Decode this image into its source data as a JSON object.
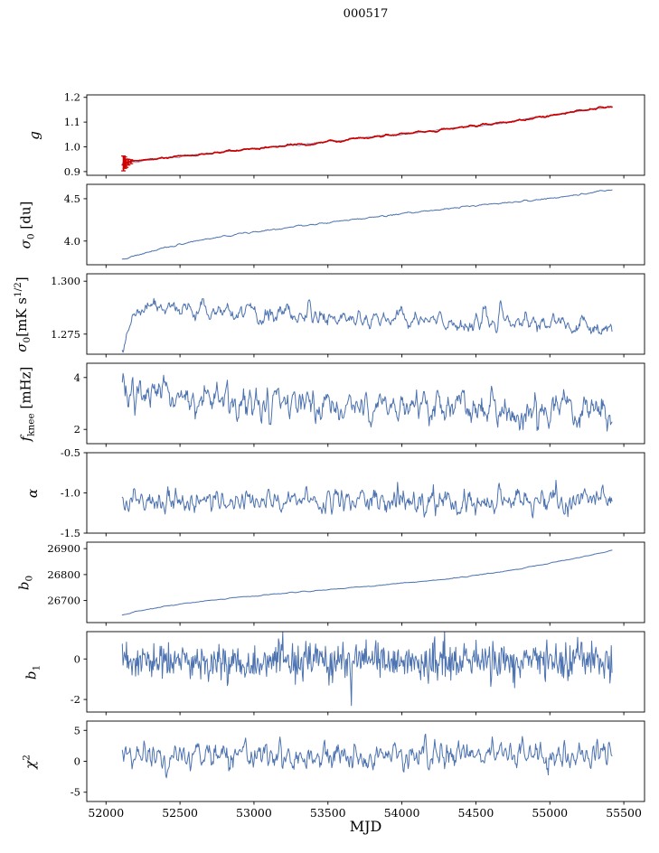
{
  "figure": {
    "title": "000517",
    "xlabel": "MJD",
    "bg_color": "#ffffff",
    "axis_color": "#000000",
    "line_color": "#4c72b0",
    "accent_color": "#cc0000"
  },
  "chart_data": {
    "type": "line",
    "title": "000517",
    "xlabel": "MJD",
    "x_range": [
      51870,
      55640
    ],
    "x_ticks": [
      52000,
      52500,
      53000,
      53500,
      54000,
      54500,
      55000,
      55500
    ],
    "x_tick_labels": [
      "52000",
      "52500",
      "53000",
      "53500",
      "54000",
      "54500",
      "55000",
      "55500"
    ],
    "x_data_range": [
      52110,
      55420
    ],
    "legend": "none",
    "grid": false,
    "subplots": [
      {
        "name": "g",
        "ylabel_text": "g",
        "ylabel_segments": [
          {
            "t": "g",
            "i": true
          }
        ],
        "ylim": [
          0.885,
          1.21
        ],
        "yticks": [
          0.9,
          1.0,
          1.1,
          1.2
        ],
        "ytick_labels": [
          "0.9",
          "1.0",
          "1.1",
          "1.2"
        ],
        "series": [
          {
            "name": "gain-model",
            "color": "#93a2c4",
            "lw": 1.0,
            "n": 600,
            "seed": 3,
            "x_start": 52110,
            "x_end": 55420,
            "noise_sd": 0.002,
            "smooth": 3,
            "trend": [
              [
                52110,
                0.933
              ],
              [
                52250,
                0.945
              ],
              [
                52400,
                0.956
              ],
              [
                52600,
                0.968
              ],
              [
                52800,
                0.98
              ],
              [
                53000,
                0.994
              ],
              [
                53200,
                1.004
              ],
              [
                53400,
                1.014
              ],
              [
                53600,
                1.028
              ],
              [
                53800,
                1.04
              ],
              [
                54000,
                1.052
              ],
              [
                54200,
                1.065
              ],
              [
                54400,
                1.078
              ],
              [
                54600,
                1.091
              ],
              [
                54800,
                1.107
              ],
              [
                55000,
                1.126
              ],
              [
                55150,
                1.141
              ],
              [
                55300,
                1.154
              ],
              [
                55420,
                1.162
              ]
            ]
          },
          {
            "name": "gain",
            "color": "#cc0000",
            "lw": 1.7,
            "n": 600,
            "seed": 5,
            "x_start": 52110,
            "x_end": 55420,
            "noise_sd": 0.0022,
            "smooth": 3,
            "trend": [
              [
                52110,
                0.933
              ],
              [
                52250,
                0.945
              ],
              [
                52400,
                0.956
              ],
              [
                52600,
                0.968
              ],
              [
                52800,
                0.98
              ],
              [
                53000,
                0.994
              ],
              [
                53200,
                1.004
              ],
              [
                53400,
                1.014
              ],
              [
                53600,
                1.028
              ],
              [
                53800,
                1.04
              ],
              [
                54000,
                1.052
              ],
              [
                54200,
                1.065
              ],
              [
                54400,
                1.078
              ],
              [
                54600,
                1.091
              ],
              [
                54800,
                1.107
              ],
              [
                55000,
                1.126
              ],
              [
                55150,
                1.141
              ],
              [
                55300,
                1.154
              ],
              [
                55420,
                1.162
              ]
            ]
          }
        ],
        "errorbars": {
          "color": "#cc0000",
          "points": [
            [
              52118,
              0.933,
              0.03
            ],
            [
              52127,
              0.936,
              0.023
            ],
            [
              52137,
              0.934,
              0.017
            ],
            [
              52150,
              0.938,
              0.012
            ],
            [
              52168,
              0.94,
              0.008
            ]
          ]
        }
      },
      {
        "name": "sigma0-du",
        "ylabel_text": "sigma0 [du]",
        "ylabel_segments": [
          {
            "t": "σ",
            "i": true
          },
          {
            "t": "0",
            "sub": true
          },
          {
            "t": " [du]"
          }
        ],
        "ylim": [
          3.72,
          4.67
        ],
        "yticks": [
          4.0,
          4.5
        ],
        "ytick_labels": [
          "4.0",
          "4.5"
        ],
        "series": [
          {
            "name": "sigma0-du",
            "color": "#4c72b0",
            "lw": 1.0,
            "n": 600,
            "seed": 7,
            "x_start": 52110,
            "x_end": 55420,
            "noise_sd": 0.005,
            "smooth": 2,
            "trend": [
              [
                52110,
                3.78
              ],
              [
                52250,
                3.85
              ],
              [
                52400,
                3.92
              ],
              [
                52600,
                4.0
              ],
              [
                52800,
                4.06
              ],
              [
                53000,
                4.11
              ],
              [
                53200,
                4.155
              ],
              [
                53400,
                4.2
              ],
              [
                53600,
                4.24
              ],
              [
                53800,
                4.28
              ],
              [
                54000,
                4.32
              ],
              [
                54200,
                4.36
              ],
              [
                54400,
                4.4
              ],
              [
                54600,
                4.44
              ],
              [
                54800,
                4.47
              ],
              [
                55000,
                4.5
              ],
              [
                55200,
                4.55
              ],
              [
                55420,
                4.61
              ]
            ]
          }
        ]
      },
      {
        "name": "sigma0-mks",
        "ylabel_text": "sigma0 [mK s^1/2]",
        "ylabel_segments": [
          {
            "t": "σ",
            "i": true
          },
          {
            "t": "0",
            "sub": true
          },
          {
            "t": "[mK s"
          },
          {
            "t": "1/2",
            "sup": true
          },
          {
            "t": "]"
          }
        ],
        "ylim": [
          1.2655,
          1.3035
        ],
        "yticks": [
          1.275,
          1.3
        ],
        "ytick_labels": [
          "1.275",
          "1.300"
        ],
        "series": [
          {
            "name": "sigma0-mks",
            "color": "#4c72b0",
            "lw": 1.0,
            "n": 700,
            "seed": 11,
            "x_start": 52110,
            "x_end": 55420,
            "noise_sd": 0.0022,
            "smooth": 2,
            "trend": [
              [
                52110,
                1.2715
              ],
              [
                52180,
                1.282
              ],
              [
                52260,
                1.288
              ],
              [
                52360,
                1.2895
              ],
              [
                52460,
                1.286
              ],
              [
                52620,
                1.287
              ],
              [
                52820,
                1.284
              ],
              [
                53020,
                1.283
              ],
              [
                53220,
                1.2845
              ],
              [
                53520,
                1.283
              ],
              [
                53820,
                1.282
              ],
              [
                54120,
                1.2812
              ],
              [
                54420,
                1.28
              ],
              [
                54720,
                1.2812
              ],
              [
                55020,
                1.28
              ],
              [
                55220,
                1.2782
              ],
              [
                55360,
                1.2756
              ],
              [
                55420,
                1.2745
              ]
            ]
          }
        ]
      },
      {
        "name": "fknee",
        "ylabel_text": "f_knee [mHz]",
        "ylabel_segments": [
          {
            "t": "f",
            "i": true
          },
          {
            "t": "knee",
            "sub": true
          },
          {
            "t": " [mHz]"
          }
        ],
        "ylim": [
          1.45,
          4.55
        ],
        "yticks": [
          2,
          4
        ],
        "ytick_labels": [
          "2",
          "4"
        ],
        "series": [
          {
            "name": "fknee",
            "color": "#4c72b0",
            "lw": 1.0,
            "n": 700,
            "seed": 13,
            "x_start": 52110,
            "x_end": 55420,
            "noise_sd": 0.32,
            "smooth": 1,
            "trend": [
              [
                52110,
                3.4
              ],
              [
                52300,
                3.3
              ],
              [
                52600,
                3.1
              ],
              [
                53000,
                3.0
              ],
              [
                53500,
                2.92
              ],
              [
                54000,
                2.82
              ],
              [
                54500,
                2.76
              ],
              [
                55000,
                2.7
              ],
              [
                55420,
                2.66
              ]
            ]
          }
        ]
      },
      {
        "name": "alpha",
        "ylabel_text": "alpha",
        "ylabel_segments": [
          {
            "t": "α",
            "i": true
          }
        ],
        "ylim": [
          -1.5,
          -0.5
        ],
        "yticks": [
          -1.5,
          -1.0,
          -0.5
        ],
        "ytick_labels": [
          "-1.5",
          "-1.0",
          "-0.5"
        ],
        "series": [
          {
            "name": "alpha",
            "color": "#4c72b0",
            "lw": 1.0,
            "n": 700,
            "seed": 17,
            "x_start": 52110,
            "x_end": 55420,
            "noise_sd": 0.075,
            "smooth": 1,
            "trend": [
              [
                52110,
                -1.11
              ],
              [
                55420,
                -1.1
              ]
            ]
          }
        ]
      },
      {
        "name": "b0",
        "ylabel_text": "b0",
        "ylabel_segments": [
          {
            "t": "b",
            "i": true
          },
          {
            "t": "0",
            "sub": true
          }
        ],
        "ylim": [
          26615,
          26925
        ],
        "yticks": [
          26700,
          26800,
          26900
        ],
        "ytick_labels": [
          "26700",
          "26800",
          "26900"
        ],
        "series": [
          {
            "name": "b0",
            "color": "#4c72b0",
            "lw": 1.0,
            "n": 450,
            "seed": 19,
            "x_start": 52110,
            "x_end": 55420,
            "noise_sd": 1.0,
            "smooth": 2,
            "trend": [
              [
                52110,
                26645
              ],
              [
                52250,
                26663
              ],
              [
                52400,
                26678
              ],
              [
                52550,
                26690
              ],
              [
                52700,
                26700
              ],
              [
                52900,
                26712
              ],
              [
                53100,
                26722
              ],
              [
                53300,
                26732
              ],
              [
                53500,
                26742
              ],
              [
                53700,
                26752
              ],
              [
                53900,
                26762
              ],
              [
                54100,
                26772
              ],
              [
                54300,
                26783
              ],
              [
                54500,
                26797
              ],
              [
                54700,
                26813
              ],
              [
                54900,
                26832
              ],
              [
                55100,
                26855
              ],
              [
                55250,
                26872
              ],
              [
                55420,
                26893
              ]
            ]
          }
        ]
      },
      {
        "name": "b1",
        "ylabel_text": "b1",
        "ylabel_segments": [
          {
            "t": "b",
            "i": true
          },
          {
            "t": "1",
            "sub": true
          }
        ],
        "ylim": [
          -2.62,
          1.35
        ],
        "yticks": [
          -2,
          0
        ],
        "ytick_labels": [
          "-2",
          "0"
        ],
        "series": [
          {
            "name": "b1",
            "color": "#4c72b0",
            "lw": 1.0,
            "n": 700,
            "seed": 23,
            "x_start": 52110,
            "x_end": 55420,
            "noise_sd": 0.45,
            "smooth": 0,
            "trend": [
              [
                52110,
                -0.16
              ],
              [
                55420,
                -0.12
              ]
            ],
            "spikes": [
              [
                53660,
                -2.3
              ]
            ]
          }
        ]
      },
      {
        "name": "chi2",
        "ylabel_text": "chi^2",
        "ylabel_segments": [
          {
            "t": "χ",
            "i": true
          },
          {
            "t": "2",
            "sup": true
          }
        ],
        "ylim": [
          -6.5,
          6.5
        ],
        "yticks": [
          -5,
          0,
          5
        ],
        "ytick_labels": [
          "-5",
          "0",
          "5"
        ],
        "series": [
          {
            "name": "chi2",
            "color": "#4c72b0",
            "lw": 1.0,
            "n": 700,
            "seed": 29,
            "x_start": 52110,
            "x_end": 55420,
            "noise_sd": 1.05,
            "smooth": 1,
            "trend": [
              [
                52110,
                0.85
              ],
              [
                53000,
                0.9
              ],
              [
                53600,
                1.1
              ],
              [
                54200,
                1.0
              ],
              [
                54700,
                1.3
              ],
              [
                55000,
                1.1
              ],
              [
                55420,
                1.2
              ]
            ]
          }
        ]
      }
    ]
  }
}
